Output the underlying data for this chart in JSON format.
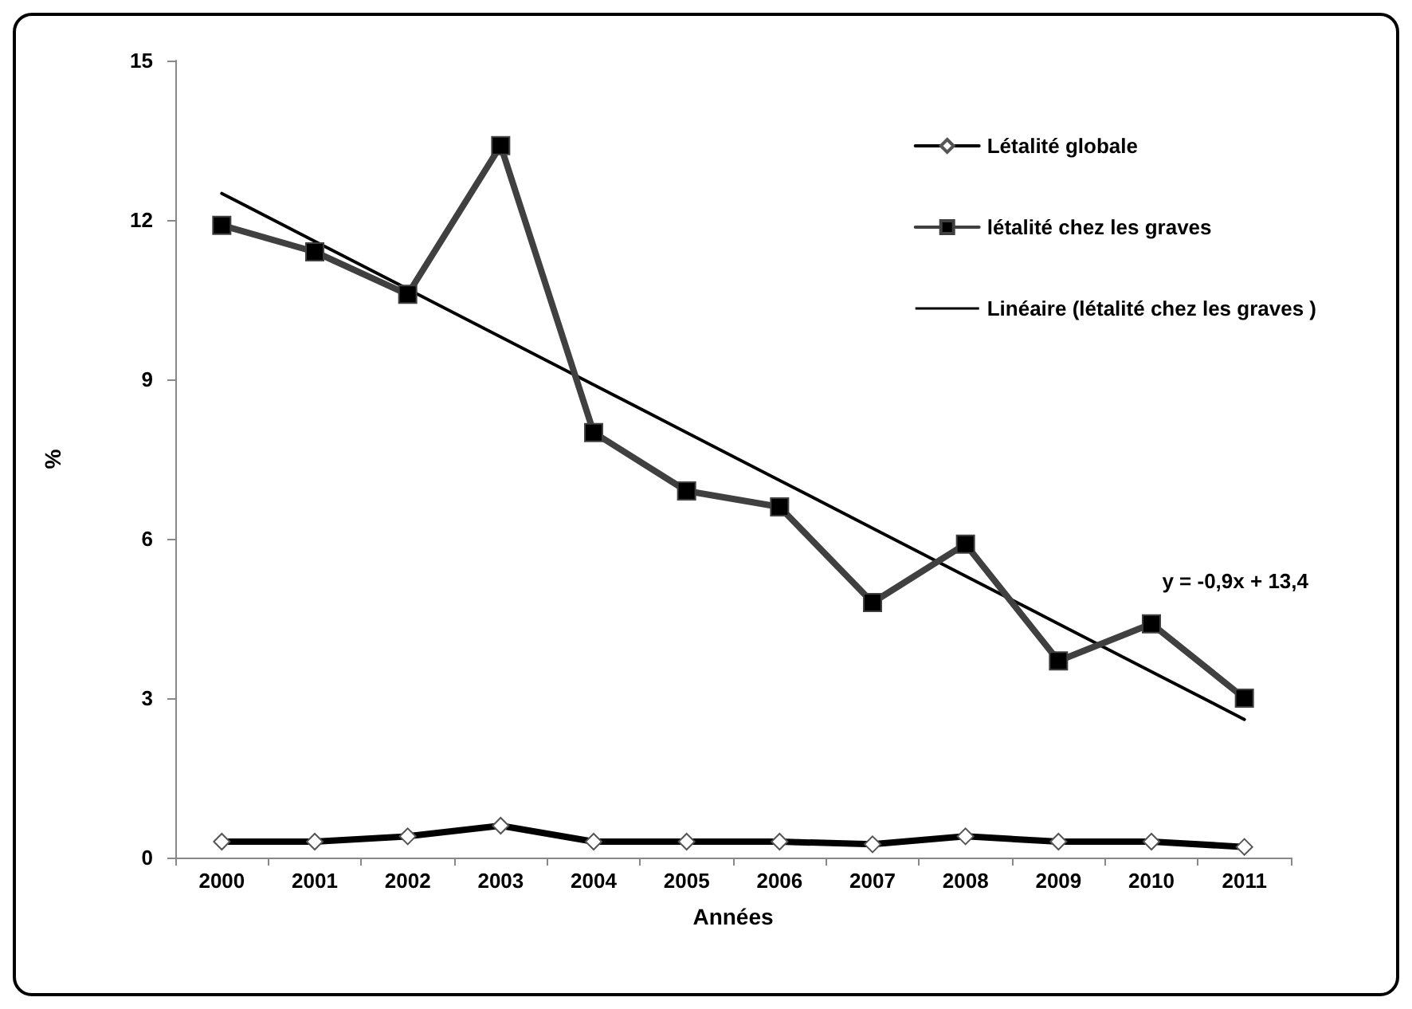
{
  "chart_data": {
    "type": "line",
    "xlabel": "Années",
    "ylabel": "%",
    "categories": [
      "2000",
      "2001",
      "2002",
      "2003",
      "2004",
      "2005",
      "2006",
      "2007",
      "2008",
      "2009",
      "2010",
      "2011"
    ],
    "series": [
      {
        "name": "Létalité globale",
        "color": "#000000",
        "marker": "diamond",
        "values": [
          0.3,
          0.3,
          0.4,
          0.6,
          0.3,
          0.3,
          0.3,
          0.25,
          0.4,
          0.3,
          0.3,
          0.2
        ]
      },
      {
        "name": "létalité chez les graves",
        "color": "#404040",
        "marker": "square",
        "values": [
          11.9,
          11.4,
          10.6,
          13.4,
          8.0,
          6.9,
          6.6,
          4.8,
          5.9,
          3.7,
          4.4,
          3.0
        ]
      },
      {
        "name": "Linéaire (létalité chez les graves )",
        "color": "#000000",
        "marker": "none",
        "values": [
          12.5,
          11.6,
          10.7,
          9.8,
          8.9,
          8.0,
          7.1,
          6.2,
          5.3,
          4.4,
          3.5,
          2.6
        ]
      }
    ],
    "ylim": [
      0,
      15
    ],
    "yticks": [
      0,
      3,
      6,
      9,
      12,
      15
    ],
    "grid": false,
    "legend": "top right",
    "annotations": [
      "y = -0,9x + 13,4"
    ]
  }
}
